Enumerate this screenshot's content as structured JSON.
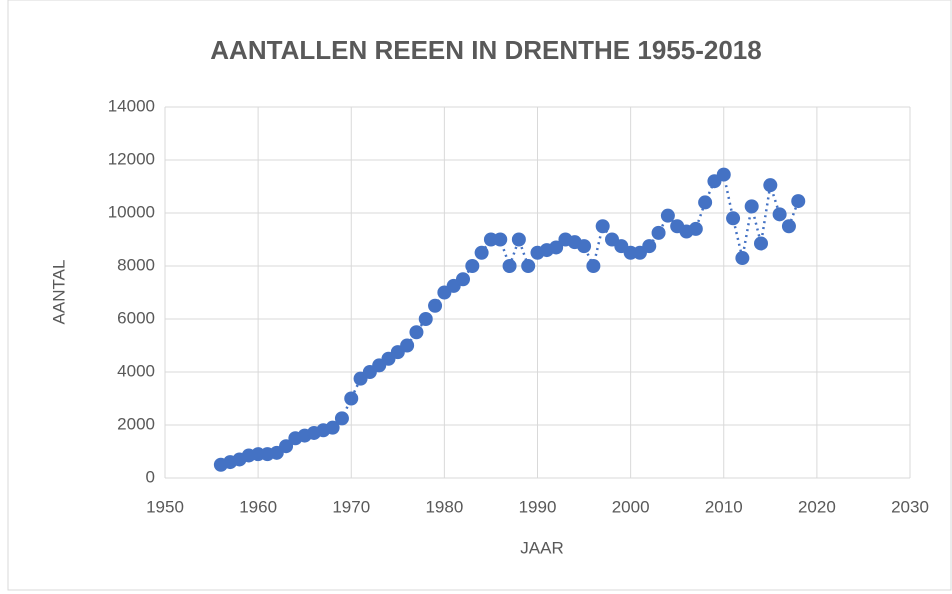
{
  "chart_data": {
    "type": "scatter",
    "title": "AANTALLEN REEEN IN DRENTHE 1955-2018",
    "x_label": "JAAR",
    "y_label": "AANTAL",
    "color": "#4472c4",
    "grid": true,
    "xlim": [
      1950,
      2030
    ],
    "xticks": [
      1950,
      1960,
      1970,
      1980,
      1990,
      2000,
      2010,
      2020,
      2030
    ],
    "ylim": [
      0,
      14000
    ],
    "yticks": [
      0,
      2000,
      4000,
      6000,
      8000,
      10000,
      12000,
      14000
    ],
    "x": [
      1956,
      1957,
      1958,
      1959,
      1960,
      1961,
      1962,
      1963,
      1964,
      1965,
      1966,
      1967,
      1968,
      1969,
      1970,
      1971,
      1972,
      1973,
      1974,
      1975,
      1976,
      1977,
      1978,
      1979,
      1980,
      1981,
      1982,
      1983,
      1984,
      1985,
      1986,
      1987,
      1988,
      1989,
      1990,
      1991,
      1992,
      1993,
      1994,
      1995,
      1996,
      1997,
      1998,
      1999,
      2000,
      2001,
      2002,
      2003,
      2004,
      2005,
      2006,
      2007,
      2008,
      2009,
      2010,
      2011,
      2012,
      2013,
      2014,
      2015,
      2016,
      2017,
      2018
    ],
    "values": [
      500,
      600,
      700,
      850,
      900,
      900,
      950,
      1200,
      1500,
      1600,
      1700,
      1800,
      1900,
      2250,
      3000,
      3750,
      4000,
      4250,
      4500,
      4750,
      5000,
      5500,
      6000,
      6500,
      7000,
      7250,
      7500,
      8000,
      8500,
      9000,
      9000,
      8000,
      9000,
      8000,
      8500,
      8600,
      8700,
      9000,
      8900,
      8750,
      8000,
      9500,
      9000,
      8750,
      8500,
      8500,
      8750,
      9250,
      9900,
      9500,
      9300,
      9400,
      10400,
      11200,
      11450,
      9800,
      8300,
      10250,
      8850,
      11050,
      9950,
      9500,
      10450
    ]
  }
}
